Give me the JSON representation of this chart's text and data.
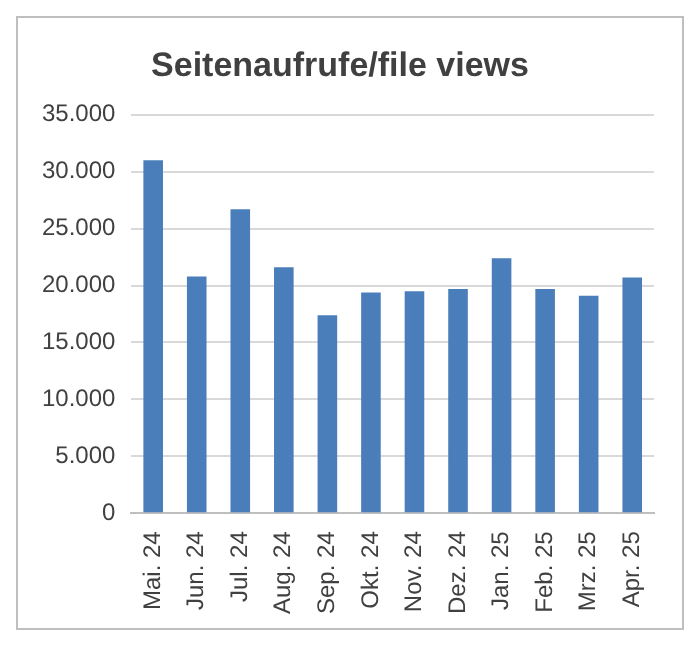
{
  "chart_data": {
    "type": "bar",
    "title": "Seitenaufrufe/file views",
    "categories": [
      "Mai. 24",
      "Jun. 24",
      "Jul. 24",
      "Aug. 24",
      "Sep. 24",
      "Okt. 24",
      "Nov. 24",
      "Dez. 24",
      "Jan. 25",
      "Feb. 25",
      "Mrz. 25",
      "Apr. 25"
    ],
    "values": [
      31000,
      20800,
      26700,
      21600,
      17400,
      19400,
      19500,
      19700,
      22400,
      19700,
      19100,
      20700
    ],
    "color": "#4a7ebb",
    "ylim": [
      0,
      35000
    ],
    "yticks": [
      {
        "value": 0,
        "label": "0"
      },
      {
        "value": 5000,
        "label": "5.000"
      },
      {
        "value": 10000,
        "label": "10.000"
      },
      {
        "value": 15000,
        "label": "15.000"
      },
      {
        "value": 20000,
        "label": "20.000"
      },
      {
        "value": 25000,
        "label": "25.000"
      },
      {
        "value": 30000,
        "label": "30.000"
      },
      {
        "value": 35000,
        "label": "35.000"
      }
    ],
    "grid": "y",
    "legend": false
  }
}
